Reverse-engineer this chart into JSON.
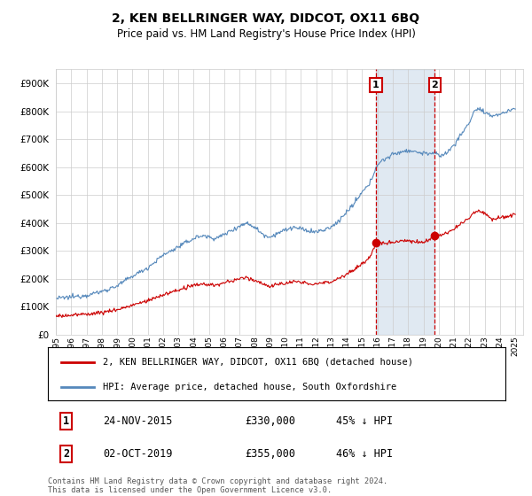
{
  "title": "2, KEN BELLRINGER WAY, DIDCOT, OX11 6BQ",
  "subtitle": "Price paid vs. HM Land Registry's House Price Index (HPI)",
  "legend_line1": "2, KEN BELLRINGER WAY, DIDCOT, OX11 6BQ (detached house)",
  "legend_line2": "HPI: Average price, detached house, South Oxfordshire",
  "annotation1_label": "1",
  "annotation1_date": "24-NOV-2015",
  "annotation1_price": "£330,000",
  "annotation1_hpi": "45% ↓ HPI",
  "annotation1_year": 2015.9,
  "annotation1_value": 330000,
  "annotation2_label": "2",
  "annotation2_date": "02-OCT-2019",
  "annotation2_price": "£355,000",
  "annotation2_hpi": "46% ↓ HPI",
  "annotation2_year": 2019.75,
  "annotation2_value": 355000,
  "footer": "Contains HM Land Registry data © Crown copyright and database right 2024.\nThis data is licensed under the Open Government Licence v3.0.",
  "red_color": "#cc0000",
  "blue_color": "#5588bb",
  "fill_color": "#ddeeff",
  "ylim_max": 950000,
  "xlim_start": 1995.0,
  "xlim_end": 2025.5,
  "hpi_noise_std": 4000,
  "price_noise_std": 3500
}
